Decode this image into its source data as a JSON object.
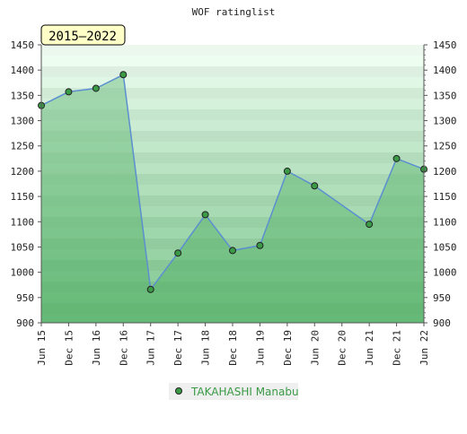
{
  "chart_data": {
    "type": "area",
    "title": "WOF ratinglist",
    "period_badge": "2015–2022",
    "xlabel": "",
    "ylabel": "",
    "ylim": [
      900,
      1450
    ],
    "yticks": [
      900,
      950,
      1000,
      1050,
      1100,
      1150,
      1200,
      1250,
      1300,
      1350,
      1400,
      1450
    ],
    "xticks": [
      "Jun 15",
      "Dec 15",
      "Jun 16",
      "Dec 16",
      "Jun 17",
      "Dec 17",
      "Jun 18",
      "Dec 18",
      "Jun 19",
      "Dec 19",
      "Jun 20",
      "Dec 20",
      "Jun 21",
      "Dec 21",
      "Jun 22"
    ],
    "grid": "horizontal bands",
    "legend_position": "bottom-center",
    "series": [
      {
        "name": "TAKAHASHI Manabu",
        "color": "#3a9a46",
        "line_color": "#5b8fd0",
        "points": [
          {
            "x": "Jun 15",
            "y": 1330
          },
          {
            "x": "Dec 15",
            "y": 1357
          },
          {
            "x": "Jun 16",
            "y": 1364
          },
          {
            "x": "Dec 16",
            "y": 1391
          },
          {
            "x": "Jun 17",
            "y": 966
          },
          {
            "x": "Dec 17",
            "y": 1038
          },
          {
            "x": "Jun 18",
            "y": 1114
          },
          {
            "x": "Dec 18",
            "y": 1043
          },
          {
            "x": "Jun 19",
            "y": 1053
          },
          {
            "x": "Dec 19",
            "y": 1200
          },
          {
            "x": "Jun 20",
            "y": 1171
          },
          {
            "x": "Jun 21",
            "y": 1095
          },
          {
            "x": "Dec 21",
            "y": 1225
          },
          {
            "x": "Jun 22",
            "y": 1204
          }
        ]
      }
    ]
  }
}
